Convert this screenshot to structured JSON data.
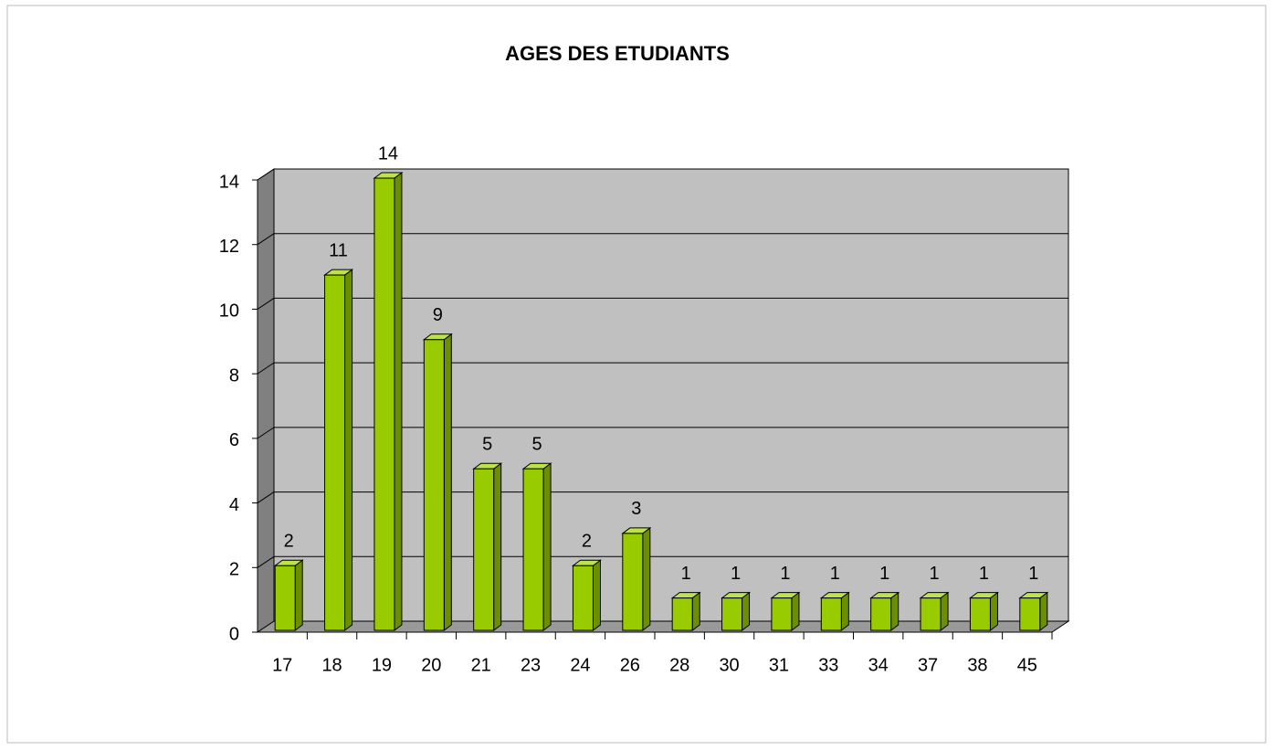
{
  "chart_data": {
    "type": "bar",
    "title": "AGES DES ETUDIANTS",
    "categories": [
      "17",
      "18",
      "19",
      "20",
      "21",
      "23",
      "24",
      "26",
      "28",
      "30",
      "31",
      "33",
      "34",
      "37",
      "38",
      "45"
    ],
    "values": [
      2,
      11,
      14,
      9,
      5,
      5,
      2,
      3,
      1,
      1,
      1,
      1,
      1,
      1,
      1,
      1
    ],
    "color": "#99cc00",
    "ylim": [
      0,
      14
    ],
    "yticks": [
      0,
      2,
      4,
      6,
      8,
      10,
      12,
      14
    ],
    "grid": true
  }
}
